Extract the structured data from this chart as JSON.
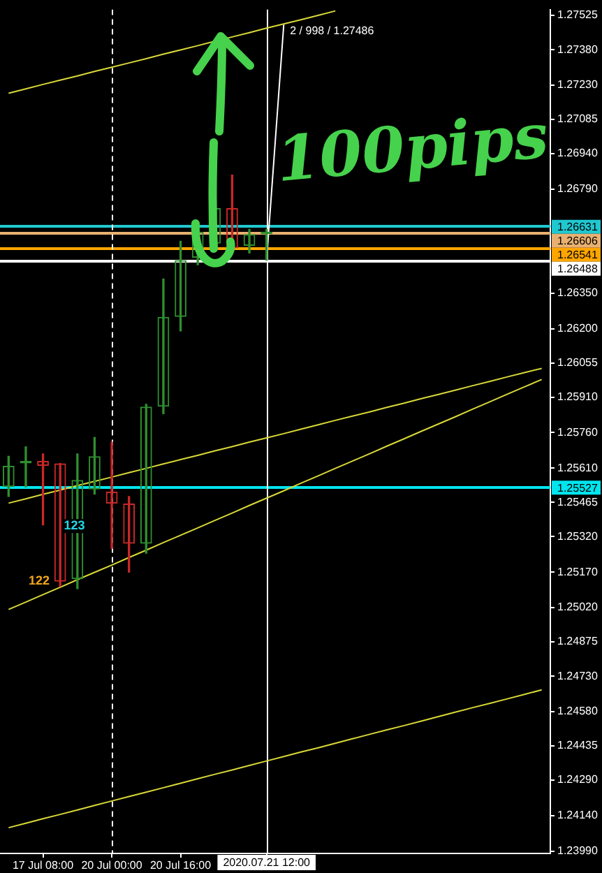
{
  "chart_data": {
    "type": "candlestick",
    "categories": [
      null,
      null,
      "17 Jul 08:00",
      null,
      null,
      null,
      "20 Jul 00:00",
      null,
      null,
      null,
      "20 Jul 16:00",
      null,
      null,
      null,
      null,
      "2020.07.21 12:00",
      null,
      null,
      null,
      null,
      null,
      null,
      null,
      null,
      null,
      null,
      null,
      null,
      null,
      null,
      null,
      null
    ],
    "ohlc": [
      [
        1.2553,
        1.2566,
        1.2549,
        1.2562
      ],
      [
        1.2563,
        1.257,
        1.2553,
        1.2564
      ],
      [
        1.2564,
        1.2567,
        1.2537,
        1.2562
      ],
      [
        1.2563,
        1.2563,
        1.2511,
        1.2513
      ],
      [
        1.2514,
        1.2567,
        1.251,
        1.2556
      ],
      [
        1.2552,
        1.2574,
        1.255,
        1.2566
      ],
      [
        1.2551,
        1.2572,
        1.2527,
        1.2546
      ],
      [
        1.2546,
        1.2549,
        1.2517,
        1.2529
      ],
      [
        1.2529,
        1.2588,
        1.2525,
        1.2587
      ],
      [
        1.2587,
        1.2641,
        1.2584,
        1.2625
      ],
      [
        1.2625,
        1.2657,
        1.2619,
        1.2649
      ],
      [
        1.265,
        1.2664,
        1.2647,
        1.2661
      ],
      [
        1.2656,
        1.268,
        1.2655,
        1.2671
      ],
      [
        1.2671,
        1.2685,
        1.2653,
        1.2654
      ],
      [
        1.2655,
        1.2662,
        1.2652,
        1.266
      ],
      [
        1.266,
        1.2662,
        1.2649,
        1.2661
      ],
      null,
      null,
      null,
      null,
      null,
      null,
      null,
      null,
      null,
      null,
      null,
      null,
      null,
      null,
      null,
      null
    ],
    "colors": [
      "#2f8f2f",
      "#2f8f2f",
      "#c82828",
      "#c82828",
      "#2f8f2f",
      "#2f8f2f",
      "#c82828",
      "#c82828",
      "#2f8f2f",
      "#2f8f2f",
      "#2f8f2f",
      "#2f8f2f",
      "#2f8f2f",
      "#c82828",
      "#2f8f2f",
      "#2f8f2f",
      null,
      null,
      null,
      null,
      null,
      null,
      null,
      null,
      null,
      null,
      null,
      null,
      null,
      null,
      null,
      null
    ],
    "series": [
      {
        "type": "line",
        "color": "#d8d838",
        "values": [
          1.27196,
          1.27214,
          1.27233,
          1.27251,
          1.27269,
          1.27288,
          1.27306,
          1.27324,
          1.27342,
          1.27361,
          1.27379,
          1.27397,
          1.27416,
          1.27434,
          1.27452,
          1.27471,
          1.27489,
          1.27507,
          1.27525,
          1.27544,
          null,
          null,
          null,
          null,
          null,
          null,
          null,
          null,
          null,
          null,
          null,
          null
        ]
      },
      {
        "type": "line",
        "color": "#d8d838",
        "values": [
          1.25462,
          1.2548,
          1.25499,
          1.25517,
          1.25536,
          1.25554,
          1.25572,
          1.25591,
          1.25609,
          1.25628,
          1.25646,
          1.25664,
          1.25683,
          1.25701,
          1.2572,
          1.25738,
          1.25756,
          1.25775,
          1.25793,
          1.25812,
          1.2583,
          1.25848,
          1.25867,
          1.25885,
          1.25904,
          1.25922,
          1.2594,
          1.25959,
          1.25977,
          1.25996,
          1.26014,
          1.26032
        ]
      },
      {
        "type": "line",
        "color": "#d8d838",
        "values": [
          1.25012,
          1.25043,
          1.25075,
          1.25106,
          1.25138,
          1.25169,
          1.252,
          1.25232,
          1.25263,
          1.25295,
          1.25326,
          1.25357,
          1.25389,
          1.2542,
          1.25452,
          1.25483,
          1.25514,
          1.25546,
          1.25577,
          1.25609,
          1.2564,
          1.25671,
          1.25703,
          1.25734,
          1.25766,
          1.25797,
          1.25828,
          1.2586,
          1.25891,
          1.25923,
          1.25954,
          1.25985
        ]
      },
      {
        "type": "line",
        "color": "#d8d838",
        "values": [
          1.24089,
          1.24108,
          1.24127,
          1.24145,
          1.24164,
          1.24183,
          1.24202,
          1.24221,
          1.24239,
          1.24258,
          1.24277,
          1.24296,
          1.24315,
          1.24333,
          1.24352,
          1.24371,
          1.2439,
          1.24409,
          1.24427,
          1.24446,
          1.24465,
          1.24484,
          1.24503,
          1.24521,
          1.2454,
          1.24559,
          1.24578,
          1.24597,
          1.24615,
          1.24634,
          1.24653,
          1.24672
        ]
      },
      {
        "type": "line",
        "color": "#ffffff",
        "values": [
          null,
          null,
          null,
          null,
          null,
          null,
          null,
          null,
          null,
          null,
          null,
          null,
          null,
          null,
          null,
          1.26488,
          1.27486,
          null,
          null,
          null,
          null,
          null,
          null,
          null,
          null,
          null,
          null,
          null,
          null,
          null,
          null,
          null
        ]
      }
    ],
    "ylim": [
      1.2398,
      1.2755
    ],
    "yticks": [
      1.27525,
      {
        "value": 1.2738,
        "label": "1.27380"
      },
      {
        "value": 1.2723,
        "label": "1.27230"
      },
      1.27085,
      {
        "value": 1.2694,
        "label": "1.26940"
      },
      {
        "value": 1.2679,
        "label": "1.26790"
      },
      {
        "value": 1.2635,
        "label": "1.26350"
      },
      {
        "value": 1.262,
        "label": "1.26200"
      },
      1.26055,
      {
        "value": 1.2591,
        "label": "1.25910"
      },
      {
        "value": 1.2576,
        "label": "1.25760"
      },
      {
        "value": 1.2561,
        "label": "1.25610"
      },
      1.25465,
      {
        "value": 1.2532,
        "label": "1.25320"
      },
      {
        "value": 1.2517,
        "label": "1.25170"
      },
      {
        "value": 1.2502,
        "label": "1.25020"
      },
      1.24875,
      {
        "value": 1.2473,
        "label": "1.24730"
      },
      {
        "value": 1.2458,
        "label": "1.24580"
      },
      1.24435,
      {
        "value": 1.2429,
        "label": "1.24290"
      },
      {
        "value": 1.2414,
        "label": "1.24140"
      },
      {
        "value": 1.2399,
        "label": "1.23990"
      }
    ],
    "ref_lines": [
      {
        "axis": "y",
        "value": 1.26631,
        "label": "1.26631",
        "color": "#20c8d0"
      },
      {
        "axis": "y",
        "value": 1.26606,
        "label": "1.26606",
        "color": "#e8b070"
      },
      {
        "axis": "y",
        "value": 1.26541,
        "label": "1.26541",
        "color": "#ffa500"
      },
      {
        "axis": "y",
        "value": 1.26488,
        "label": "1.26488",
        "color": "#ffffff"
      },
      {
        "axis": "y",
        "value": 1.25527,
        "label": "1.25527",
        "color": "#00e5ee"
      },
      {
        "axis": "x",
        "value": "20 Jul 00:00",
        "color": "#ffffff",
        "line_style": "dashed"
      },
      {
        "axis": "x",
        "value": "2020.07.21 12:00",
        "color": "#ffffff"
      }
    ],
    "annotations": [
      "100pips",
      "122",
      "123",
      "2 / 998 / 1.27486"
    ]
  }
}
